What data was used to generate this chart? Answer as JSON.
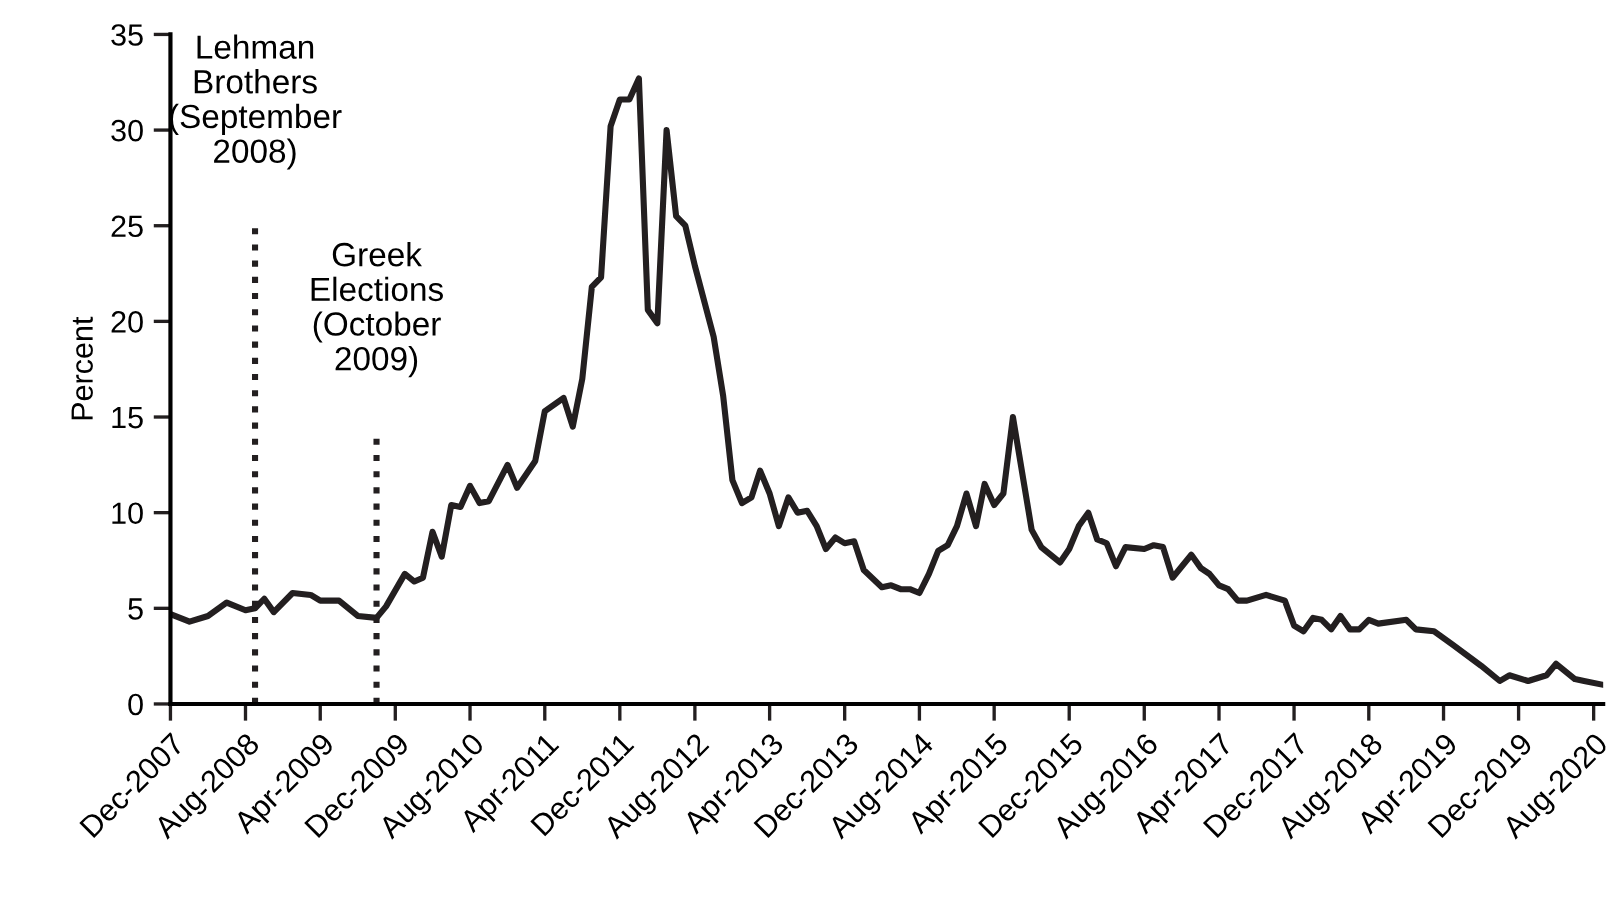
{
  "chart_data": {
    "type": "line",
    "ylabel": "Percent",
    "x": [
      "2007-12",
      "2008-02",
      "2008-04",
      "2008-06",
      "2008-08",
      "2008-09",
      "2008-10",
      "2008-11",
      "2009-01",
      "2009-03",
      "2009-04",
      "2009-06",
      "2009-08",
      "2009-10",
      "2009-11",
      "2010-01",
      "2010-02",
      "2010-03",
      "2010-04",
      "2010-05",
      "2010-06",
      "2010-07",
      "2010-08",
      "2010-09",
      "2010-10",
      "2010-12",
      "2011-01",
      "2011-03",
      "2011-04",
      "2011-06",
      "2011-07",
      "2011-08",
      "2011-09",
      "2011-10",
      "2011-11",
      "2011-12",
      "2012-01",
      "2012-02",
      "2012-03",
      "2012-04",
      "2012-05",
      "2012-06",
      "2012-07",
      "2012-08",
      "2012-10",
      "2012-11",
      "2012-12",
      "2013-01",
      "2013-02",
      "2013-03",
      "2013-04",
      "2013-05",
      "2013-06",
      "2013-07",
      "2013-08",
      "2013-09",
      "2013-10",
      "2013-11",
      "2013-12",
      "2014-01",
      "2014-02",
      "2014-04",
      "2014-05",
      "2014-06",
      "2014-07",
      "2014-08",
      "2014-09",
      "2014-10",
      "2014-11",
      "2014-12",
      "2015-01",
      "2015-02",
      "2015-03",
      "2015-04",
      "2015-05",
      "2015-06",
      "2015-08",
      "2015-09",
      "2015-11",
      "2015-12",
      "2016-01",
      "2016-02",
      "2016-03",
      "2016-04",
      "2016-05",
      "2016-06",
      "2016-08",
      "2016-09",
      "2016-10",
      "2016-11",
      "2017-01",
      "2017-02",
      "2017-03",
      "2017-04",
      "2017-05",
      "2017-06",
      "2017-07",
      "2017-09",
      "2017-11",
      "2017-12",
      "2018-01",
      "2018-02",
      "2018-03",
      "2018-04",
      "2018-05",
      "2018-06",
      "2018-07",
      "2018-08",
      "2018-09",
      "2018-12",
      "2019-01",
      "2019-03",
      "2019-05",
      "2019-08",
      "2019-10",
      "2019-11",
      "2020-01",
      "2020-03",
      "2020-04",
      "2020-06",
      "2020-07",
      "2020-09"
    ],
    "series": [
      {
        "color": "#231f20",
        "values": [
          4.7,
          4.3,
          4.6,
          5.3,
          4.9,
          5.0,
          5.5,
          4.8,
          5.8,
          5.7,
          5.4,
          5.4,
          4.6,
          4.5,
          5.1,
          6.8,
          6.4,
          6.6,
          9.0,
          7.7,
          10.4,
          10.3,
          11.4,
          10.5,
          10.6,
          12.5,
          11.3,
          12.7,
          15.3,
          16.0,
          14.5,
          17.0,
          21.8,
          22.3,
          30.2,
          31.6,
          31.6,
          32.7,
          20.6,
          19.9,
          30.0,
          25.5,
          25.0,
          22.9,
          19.2,
          16.1,
          11.7,
          10.5,
          10.8,
          12.2,
          11.0,
          9.3,
          10.8,
          10.0,
          10.1,
          9.3,
          8.1,
          8.7,
          8.4,
          8.5,
          7.0,
          6.1,
          6.2,
          6.0,
          6.0,
          5.8,
          6.8,
          8.0,
          8.3,
          9.3,
          11.0,
          9.3,
          11.5,
          10.4,
          11.0,
          15.0,
          9.1,
          8.2,
          7.4,
          8.1,
          9.3,
          10.0,
          8.6,
          8.4,
          7.2,
          8.2,
          8.1,
          8.3,
          8.2,
          6.6,
          7.8,
          7.1,
          6.8,
          6.2,
          6.0,
          5.4,
          5.4,
          5.7,
          5.4,
          4.1,
          3.8,
          4.5,
          4.4,
          3.9,
          4.6,
          3.9,
          3.9,
          4.4,
          4.2,
          4.4,
          3.9,
          3.8,
          3.1,
          2.0,
          1.2,
          1.5,
          1.2,
          1.5,
          2.1,
          1.3,
          1.2,
          1.0
        ]
      }
    ],
    "xlim": [
      "2007-12",
      "2020-09"
    ],
    "xticks": [
      {
        "value": "2007-12",
        "label": "Dec-2007"
      },
      {
        "value": "2008-08",
        "label": "Aug-2008"
      },
      {
        "value": "2009-04",
        "label": "Apr-2009"
      },
      {
        "value": "2009-12",
        "label": "Dec-2009"
      },
      {
        "value": "2010-08",
        "label": "Aug-2010"
      },
      {
        "value": "2011-04",
        "label": "Apr-2011"
      },
      {
        "value": "2011-12",
        "label": "Dec-2011"
      },
      {
        "value": "2012-08",
        "label": "Aug-2012"
      },
      {
        "value": "2013-04",
        "label": "Apr-2013"
      },
      {
        "value": "2013-12",
        "label": "Dec-2013"
      },
      {
        "value": "2014-08",
        "label": "Aug-2014"
      },
      {
        "value": "2015-04",
        "label": "Apr-2015"
      },
      {
        "value": "2015-12",
        "label": "Dec-2015"
      },
      {
        "value": "2016-08",
        "label": "Aug-2016"
      },
      {
        "value": "2017-04",
        "label": "Apr-2017"
      },
      {
        "value": "2017-12",
        "label": "Dec-2017"
      },
      {
        "value": "2018-08",
        "label": "Aug-2018"
      },
      {
        "value": "2019-04",
        "label": "Apr-2019"
      },
      {
        "value": "2019-12",
        "label": "Dec-2019"
      },
      {
        "value": "2020-08",
        "label": "Aug-2020"
      }
    ],
    "ylim": [
      0,
      35
    ],
    "yticks": [
      0,
      5,
      10,
      15,
      20,
      25,
      30,
      35
    ],
    "ref_lines": [
      {
        "axis": "x",
        "value": "2008-09",
        "label": "Lehman\nBrothers\n(September\n2008)",
        "line_style": "dotted",
        "color": "#231f20"
      },
      {
        "axis": "x",
        "value": "2009-10",
        "label": "Greek\nElections\n(October\n2009)",
        "line_style": "dotted",
        "color": "#231f20"
      }
    ],
    "grid": false,
    "legend": false,
    "marker": "none",
    "line_style": "solid"
  }
}
